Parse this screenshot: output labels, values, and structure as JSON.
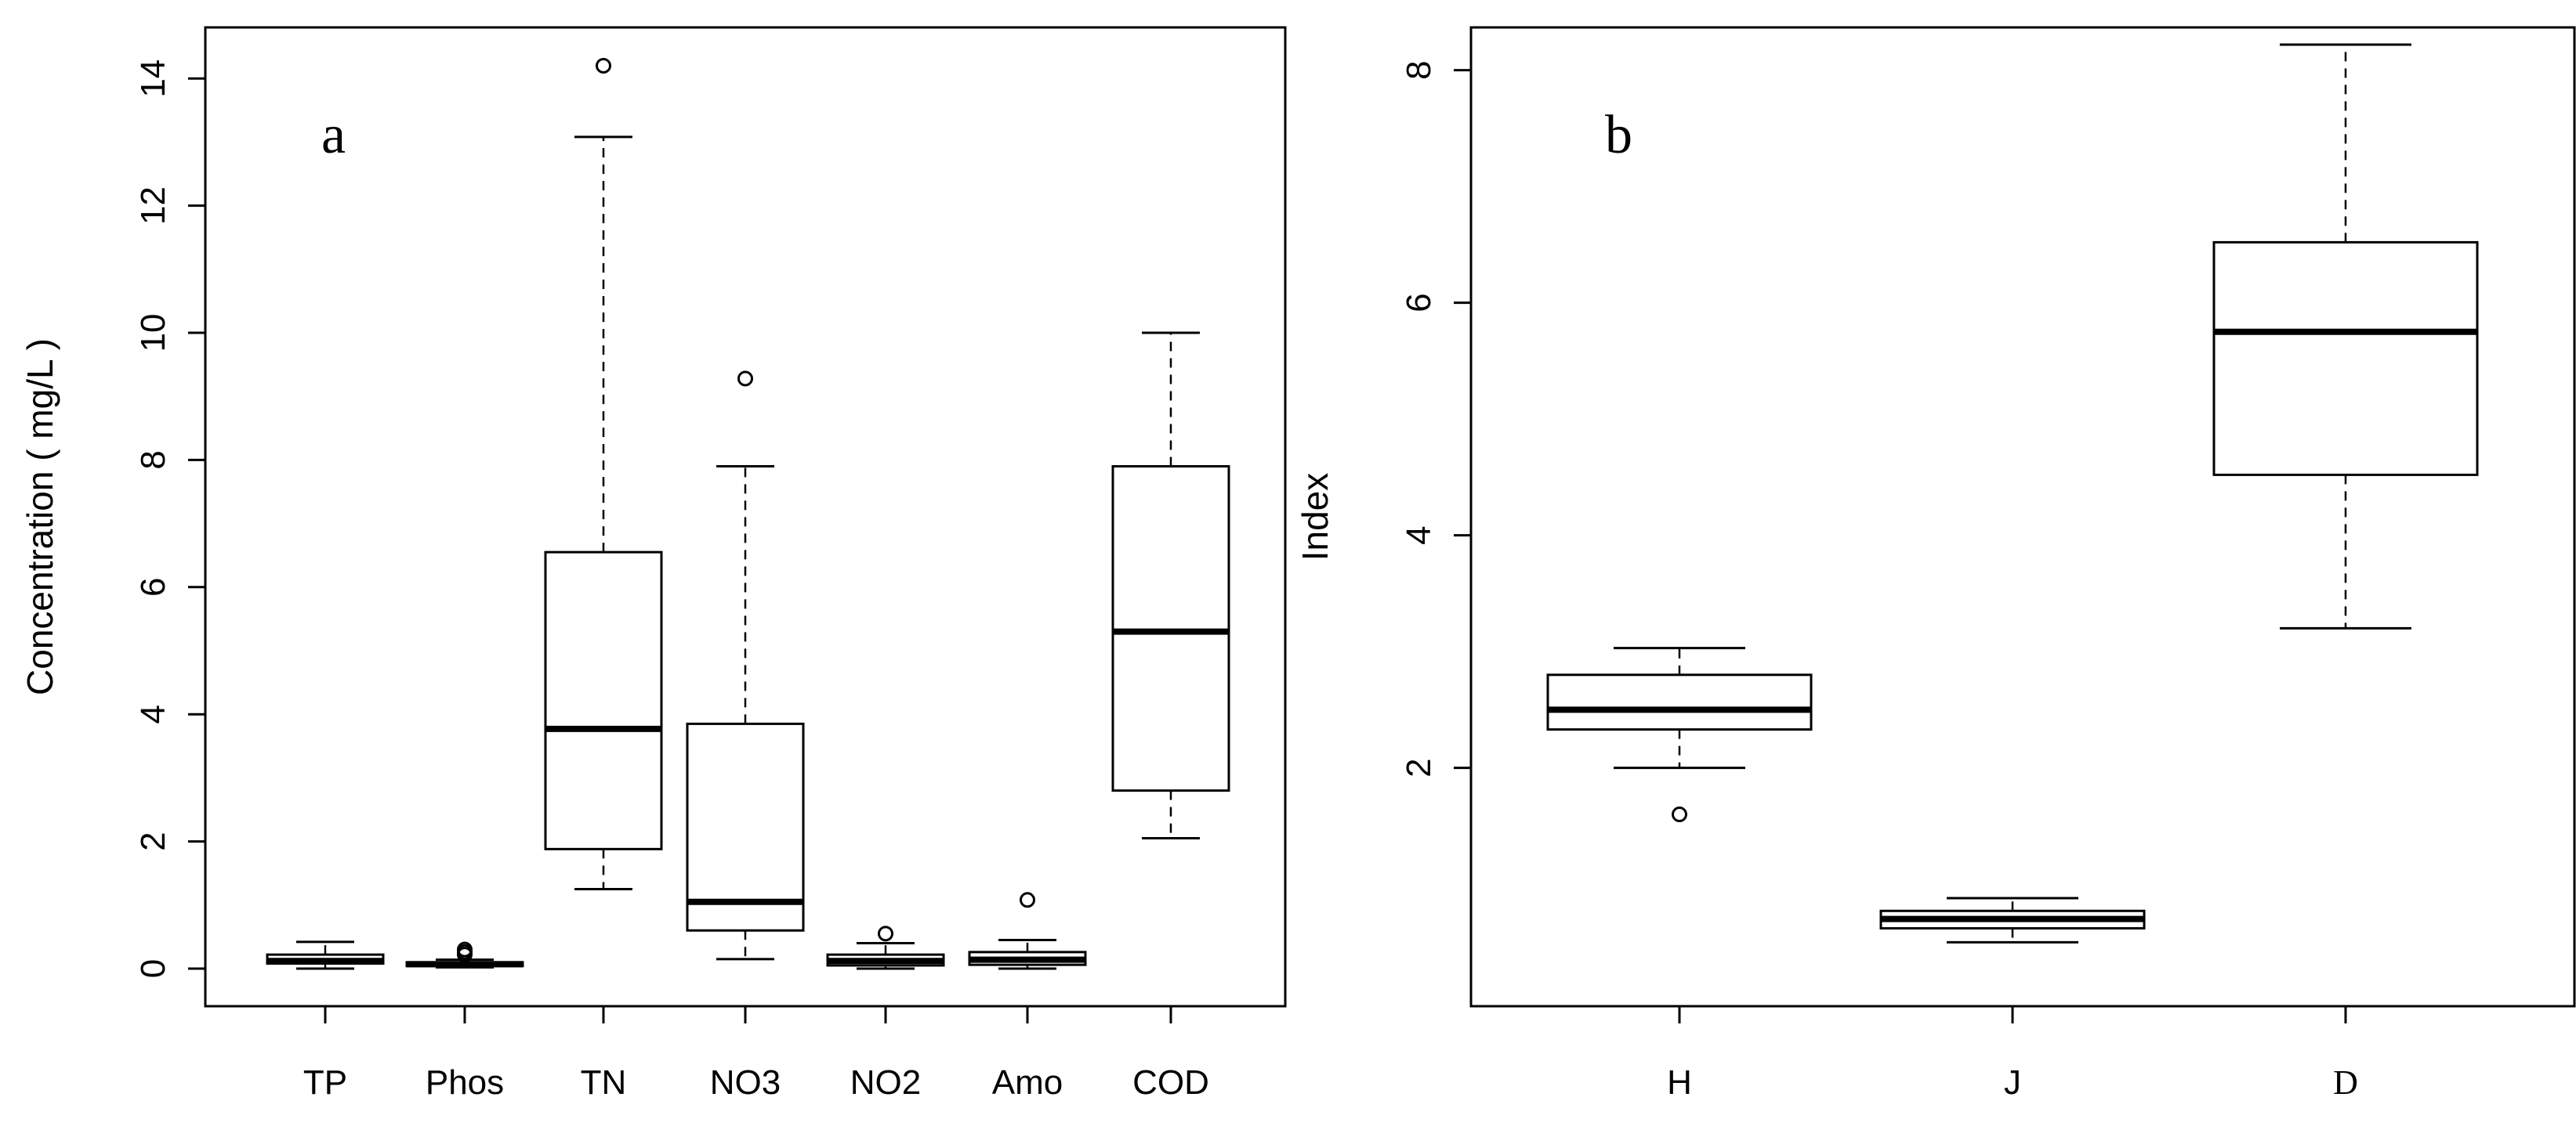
{
  "chart_data": [
    {
      "type": "boxplot",
      "panel_label": "a",
      "title": "",
      "xlabel": "",
      "ylabel": "Concentration ( mg/L )",
      "ylim": [
        0,
        14.5
      ],
      "yticks": [
        0,
        2,
        4,
        6,
        8,
        10,
        12,
        14
      ],
      "categories": [
        "TP",
        "Phos",
        "TN",
        "NO3",
        "NO2",
        "Amo",
        "COD"
      ],
      "boxes": [
        {
          "name": "TP",
          "whisker_low": 0.0,
          "q1": 0.08,
          "median": 0.12,
          "q3": 0.22,
          "whisker_high": 0.42,
          "outliers": []
        },
        {
          "name": "Phos",
          "whisker_low": 0.02,
          "q1": 0.04,
          "median": 0.07,
          "q3": 0.1,
          "whisker_high": 0.14,
          "outliers": [
            0.22,
            0.26,
            0.3
          ]
        },
        {
          "name": "TN",
          "whisker_low": 1.25,
          "q1": 1.88,
          "median": 3.77,
          "q3": 6.55,
          "whisker_high": 13.08,
          "outliers": [
            14.2
          ]
        },
        {
          "name": "NO3",
          "whisker_low": 0.15,
          "q1": 0.6,
          "median": 1.05,
          "q3": 3.85,
          "whisker_high": 7.9,
          "outliers": [
            9.28
          ]
        },
        {
          "name": "NO2",
          "whisker_low": 0.0,
          "q1": 0.05,
          "median": 0.12,
          "q3": 0.22,
          "whisker_high": 0.4,
          "outliers": [
            0.55
          ]
        },
        {
          "name": "Amo",
          "whisker_low": 0.0,
          "q1": 0.06,
          "median": 0.14,
          "q3": 0.26,
          "whisker_high": 0.45,
          "outliers": [
            1.08
          ]
        },
        {
          "name": "COD",
          "whisker_low": 2.05,
          "q1": 2.8,
          "median": 5.3,
          "q3": 7.9,
          "whisker_high": 10.0,
          "outliers": []
        }
      ]
    },
    {
      "type": "boxplot",
      "panel_label": "b",
      "title": "",
      "xlabel": "",
      "ylabel": "Index",
      "ylim": [
        0.25,
        8.6
      ],
      "yticks": [
        2,
        4,
        6,
        8
      ],
      "categories": [
        "H",
        "J",
        "D"
      ],
      "boxes": [
        {
          "name": "H",
          "whisker_low": 2.0,
          "q1": 2.33,
          "median": 2.5,
          "q3": 2.8,
          "whisker_high": 3.03,
          "outliers": [
            1.6
          ]
        },
        {
          "name": "J",
          "whisker_low": 0.5,
          "q1": 0.62,
          "median": 0.7,
          "q3": 0.77,
          "whisker_high": 0.88,
          "outliers": []
        },
        {
          "name": "D",
          "whisker_low": 3.2,
          "q1": 4.52,
          "median": 5.75,
          "q3": 6.52,
          "whisker_high": 8.22,
          "outliers": []
        }
      ]
    }
  ]
}
